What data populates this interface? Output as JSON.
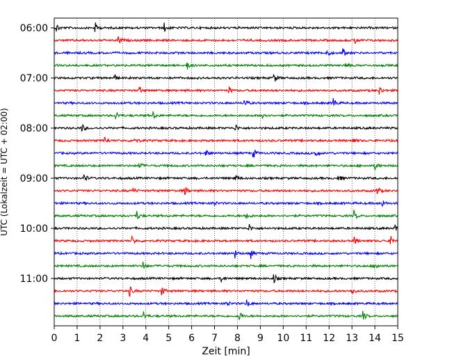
{
  "chart_data": {
    "type": "line",
    "title": "",
    "xlabel": "Zeit  [min]",
    "ylabel": "UTC (Lokalzeit = UTC + 02:00)",
    "xlim": [
      0,
      15
    ],
    "x_ticks": [
      0,
      1,
      2,
      3,
      4,
      5,
      6,
      7,
      8,
      9,
      10,
      11,
      12,
      13,
      14,
      15
    ],
    "x_grid": "dotted vertical at each minute",
    "y_ticks": [
      "06:00",
      "07:00",
      "08:00",
      "09:00",
      "10:00",
      "11:00"
    ],
    "row_interval_minutes": 15,
    "colors": [
      "#000000",
      "#ff0000",
      "#0000ff",
      "#008000"
    ],
    "rows": [
      {
        "time": "06:00",
        "color": "#000000",
        "events": [
          0.1,
          1.8,
          4.8
        ]
      },
      {
        "time": "06:15",
        "color": "#ff0000",
        "events": [
          2.8,
          13.1
        ]
      },
      {
        "time": "06:30",
        "color": "#0000ff",
        "events": [
          11.9,
          12.6
        ]
      },
      {
        "time": "06:45",
        "color": "#008000",
        "events": [
          5.8,
          12.7
        ]
      },
      {
        "time": "07:00",
        "color": "#000000",
        "events": [
          2.6,
          9.6
        ]
      },
      {
        "time": "07:15",
        "color": "#ff0000",
        "events": [
          3.7,
          7.6,
          14.2
        ]
      },
      {
        "time": "07:30",
        "color": "#0000ff",
        "events": [
          8.3,
          12.2
        ]
      },
      {
        "time": "07:45",
        "color": "#008000",
        "events": [
          2.7,
          4.3,
          9.1
        ]
      },
      {
        "time": "08:00",
        "color": "#000000",
        "events": [
          1.2,
          7.9
        ]
      },
      {
        "time": "08:15",
        "color": "#ff0000",
        "events": [
          2.2,
          3.5,
          13.0
        ]
      },
      {
        "time": "08:30",
        "color": "#0000ff",
        "events": [
          6.6,
          8.7,
          11.4
        ]
      },
      {
        "time": "08:45",
        "color": "#008000",
        "events": [
          3.7,
          14.0
        ]
      },
      {
        "time": "09:00",
        "color": "#000000",
        "events": [
          1.3,
          7.9,
          12.4
        ]
      },
      {
        "time": "09:15",
        "color": "#ff0000",
        "events": [
          3.4,
          5.7,
          14.1
        ]
      },
      {
        "time": "09:30",
        "color": "#0000ff",
        "events": [
          6.9,
          14.3
        ]
      },
      {
        "time": "09:45",
        "color": "#008000",
        "events": [
          3.6,
          8.4,
          13.1
        ]
      },
      {
        "time": "10:00",
        "color": "#000000",
        "events": [
          8.5,
          14.9
        ]
      },
      {
        "time": "10:15",
        "color": "#ff0000",
        "events": [
          3.4,
          13.1,
          14.7
        ]
      },
      {
        "time": "10:30",
        "color": "#0000ff",
        "events": [
          7.9,
          8.6
        ]
      },
      {
        "time": "10:45",
        "color": "#008000",
        "events": [
          3.9,
          14.0
        ]
      },
      {
        "time": "11:00",
        "color": "#000000",
        "events": [
          7.3,
          9.6
        ]
      },
      {
        "time": "11:15",
        "color": "#ff0000",
        "events": [
          3.3,
          4.7,
          13.0
        ]
      },
      {
        "time": "11:30",
        "color": "#0000ff",
        "events": [
          7.5,
          8.4
        ]
      },
      {
        "time": "11:45",
        "color": "#008000",
        "events": [
          3.9,
          8.1,
          13.5
        ]
      }
    ]
  }
}
